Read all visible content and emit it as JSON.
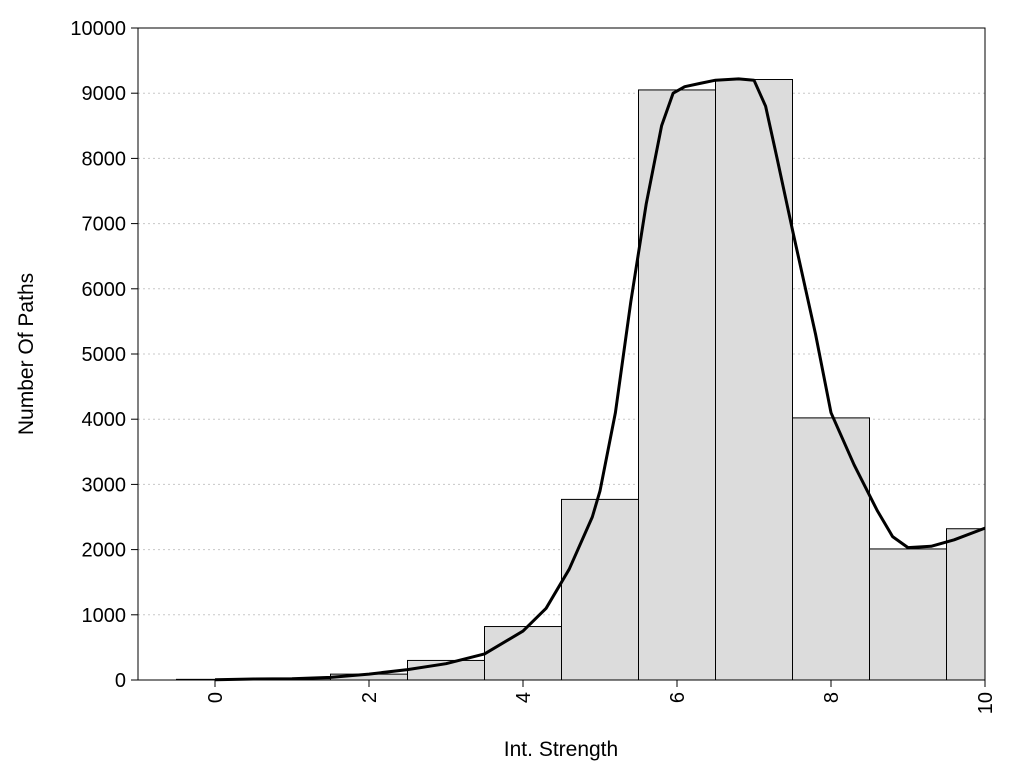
{
  "chart_data": {
    "type": "bar",
    "xlabel": "Int. Strength",
    "ylabel": "Number Of Paths",
    "xlim": [
      -1,
      10
    ],
    "ylim": [
      0,
      10000
    ],
    "x_ticks": [
      0,
      2,
      4,
      6,
      8,
      10
    ],
    "y_ticks": [
      0,
      1000,
      2000,
      3000,
      4000,
      5000,
      6000,
      7000,
      8000,
      9000,
      10000
    ],
    "grid": "horizontal dotted",
    "bar_width": 1,
    "bar_color": "#dcdcdc",
    "bars": [
      {
        "x": 0,
        "value": 10
      },
      {
        "x": 1,
        "value": 20
      },
      {
        "x": 2,
        "value": 90
      },
      {
        "x": 3,
        "value": 300
      },
      {
        "x": 4,
        "value": 820
      },
      {
        "x": 5,
        "value": 2770
      },
      {
        "x": 6,
        "value": 9050
      },
      {
        "x": 7,
        "value": 9210
      },
      {
        "x": 8,
        "value": 4020
      },
      {
        "x": 9,
        "value": 2010
      },
      {
        "x": 10,
        "value": 2320
      }
    ],
    "curve": {
      "color": "#000000",
      "x": [
        0,
        0.5,
        1,
        1.5,
        2,
        2.5,
        3,
        3.5,
        4,
        4.3,
        4.6,
        4.9,
        5,
        5.2,
        5.4,
        5.6,
        5.8,
        5.95,
        6.1,
        6.3,
        6.5,
        6.8,
        7,
        7.15,
        7.3,
        7.5,
        7.8,
        8,
        8.3,
        8.6,
        8.8,
        9,
        9.3,
        9.6,
        10
      ],
      "y": [
        5,
        15,
        20,
        40,
        90,
        160,
        250,
        400,
        750,
        1100,
        1700,
        2500,
        2900,
        4100,
        5800,
        7300,
        8500,
        9000,
        9100,
        9150,
        9200,
        9220,
        9200,
        8800,
        8000,
        6900,
        5300,
        4100,
        3300,
        2600,
        2200,
        2030,
        2050,
        2150,
        2330
      ]
    }
  }
}
